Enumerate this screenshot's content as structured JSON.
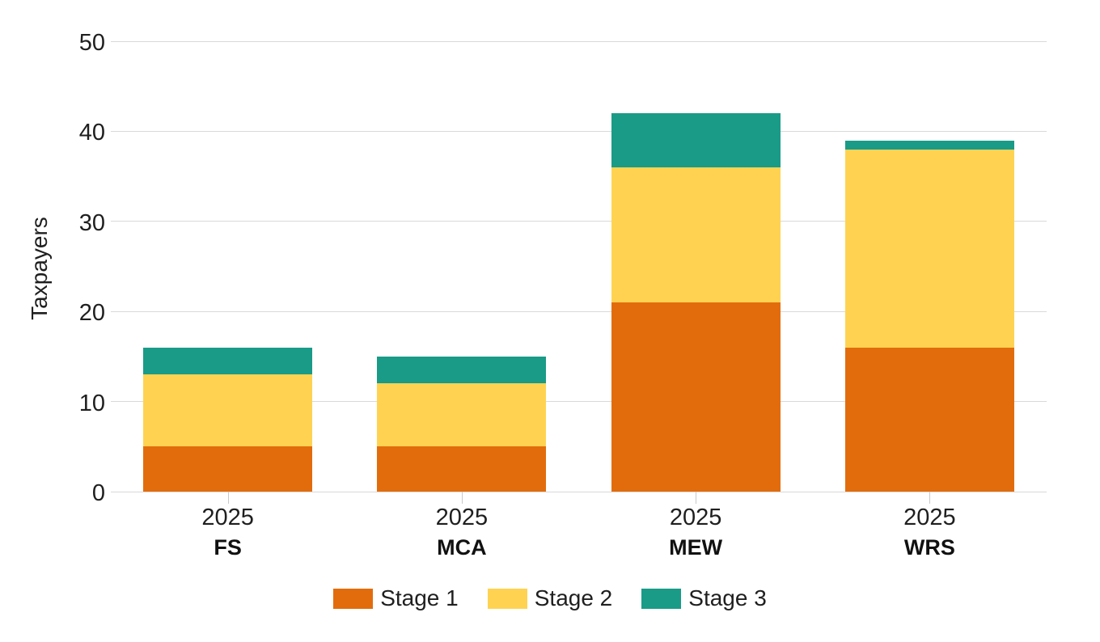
{
  "chart_data": {
    "type": "bar",
    "stacked": true,
    "title": "",
    "xlabel": "",
    "ylabel": "Taxpayers",
    "grid": "horizontal",
    "legend_position": "bottom",
    "y_axis": {
      "min": 0,
      "max": 50,
      "tick_step": 10,
      "ticks": [
        0,
        10,
        20,
        30,
        40,
        50
      ]
    },
    "groups": [
      {
        "category": "FS",
        "period": "2025",
        "total": 16
      },
      {
        "category": "MCA",
        "period": "2025",
        "total": 15
      },
      {
        "category": "MEW",
        "period": "2025",
        "total": 42
      },
      {
        "category": "WRS",
        "period": "2025",
        "total": 39
      }
    ],
    "series": [
      {
        "name": "Stage 1",
        "color": "#E26C0C",
        "values": [
          5,
          5,
          21,
          16
        ]
      },
      {
        "name": "Stage 2",
        "color": "#FFD351",
        "values": [
          8,
          7,
          15,
          22
        ]
      },
      {
        "name": "Stage 3",
        "color": "#199B87",
        "values": [
          3,
          3,
          6,
          1
        ]
      }
    ]
  }
}
